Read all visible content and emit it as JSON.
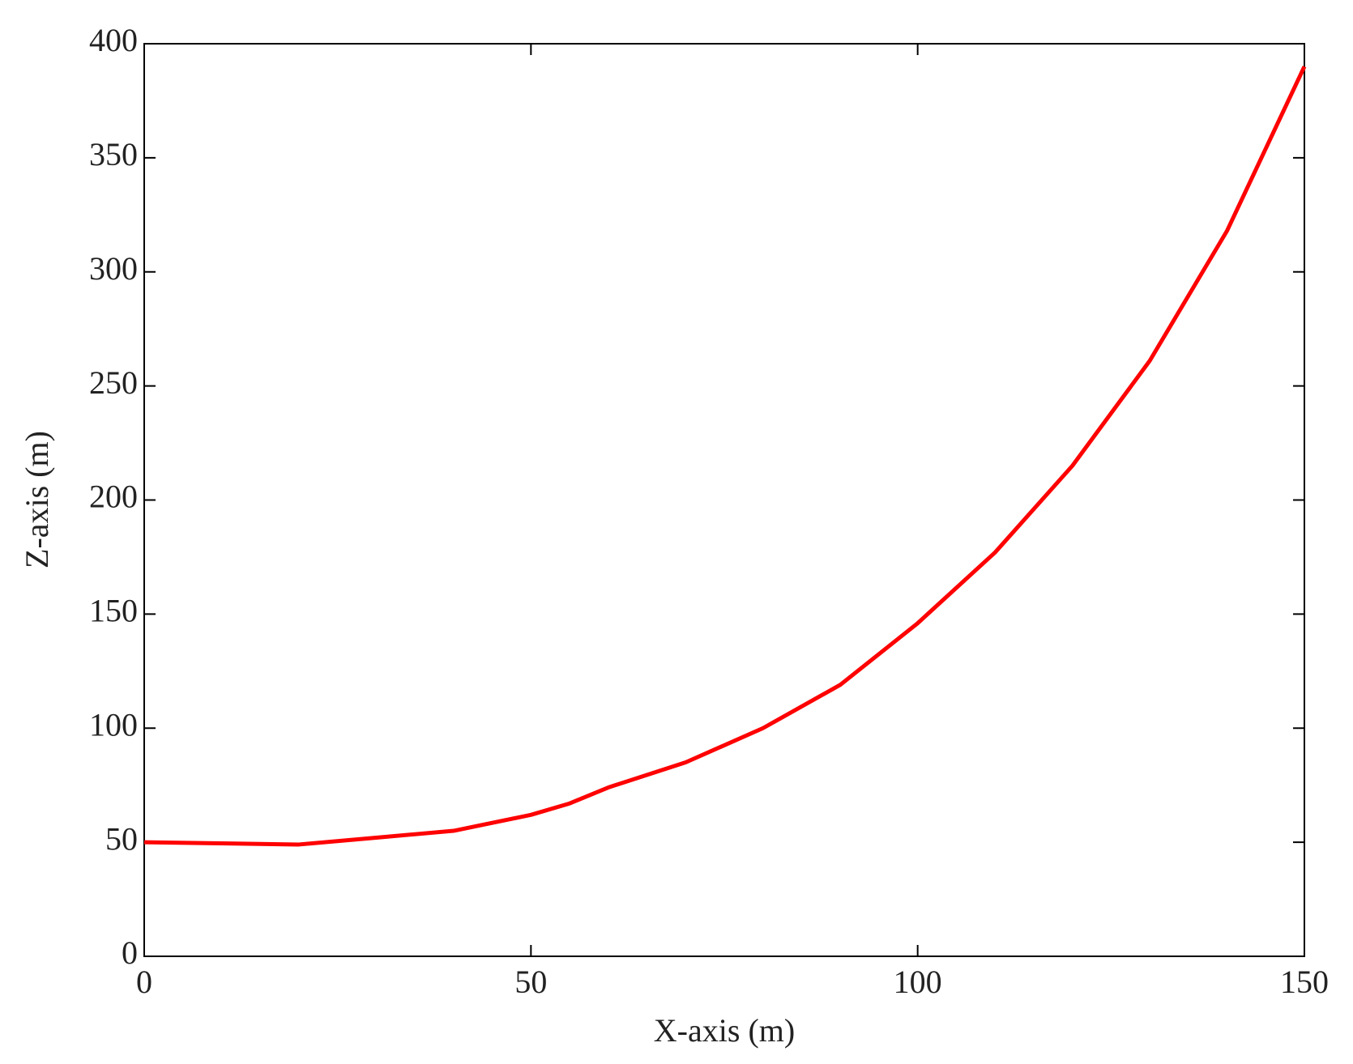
{
  "chart_data": {
    "type": "line",
    "xlabel": "X-axis (m)",
    "ylabel": "Z-axis (m)",
    "x": [
      0,
      10,
      20,
      30,
      40,
      50,
      55,
      60,
      70,
      80,
      90,
      100,
      110,
      120,
      130,
      140,
      150
    ],
    "series": [
      {
        "color": "#ff0000",
        "values": [
          50,
          49.5,
          49,
          52,
          55,
          62,
          67,
          74,
          85,
          100,
          119,
          146,
          177,
          215,
          261,
          318,
          390
        ]
      }
    ],
    "xlim": [
      0,
      150
    ],
    "xticks": [
      0,
      50,
      100,
      150
    ],
    "ylim": [
      0,
      400
    ],
    "yticks": [
      0,
      50,
      100,
      150,
      200,
      250,
      300,
      350,
      400
    ],
    "grid": false
  }
}
